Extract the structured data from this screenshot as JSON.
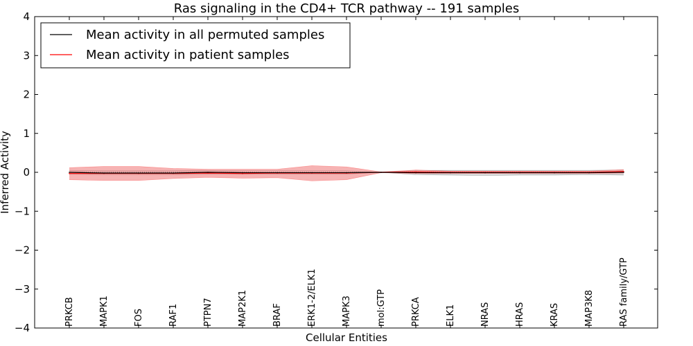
{
  "chart_data": {
    "type": "line",
    "title": "Ras signaling in the CD4+ TCR pathway -- 191 samples",
    "xlabel": "Cellular Entities",
    "ylabel": "Inferred Activity",
    "ylim": [
      -4,
      4
    ],
    "yticks": [
      4,
      3,
      2,
      1,
      0,
      -1,
      -2,
      -3,
      -4
    ],
    "ytick_labels": [
      "4",
      "3",
      "2",
      "1",
      "0",
      "−1",
      "−2",
      "−3",
      "−4"
    ],
    "categories": [
      "PRKCB",
      "MAPK1",
      "FOS",
      "RAF1",
      "PTPN7",
      "MAP2K1",
      "BRAF",
      "ERK1-2/ELK1",
      "MAPK3",
      "mol:GTP",
      "PRKCA",
      "ELK1",
      "NRAS",
      "HRAS",
      "KRAS",
      "MAP3K8",
      "RAS family/GTP"
    ],
    "legend_position": "top-left",
    "series": [
      {
        "name": "Mean activity in all permuted samples",
        "color": "#000000",
        "band_color": "#b0b0b0",
        "values": [
          0.0,
          -0.02,
          -0.02,
          -0.02,
          0.0,
          -0.01,
          -0.01,
          -0.01,
          -0.01,
          0.0,
          -0.01,
          -0.01,
          -0.01,
          -0.01,
          -0.01,
          -0.01,
          0.0
        ],
        "lower": [
          -0.05,
          -0.06,
          -0.06,
          -0.06,
          -0.05,
          -0.05,
          -0.05,
          -0.05,
          -0.05,
          0.0,
          -0.06,
          -0.07,
          -0.08,
          -0.07,
          -0.07,
          -0.06,
          -0.07
        ],
        "upper": [
          0.05,
          0.04,
          0.04,
          0.04,
          0.05,
          0.04,
          0.04,
          0.04,
          0.04,
          0.0,
          0.05,
          0.05,
          0.05,
          0.05,
          0.05,
          0.05,
          0.06
        ]
      },
      {
        "name": "Mean activity in patient samples",
        "color": "#ff0000",
        "band_color": "#f08080",
        "values": [
          -0.03,
          -0.03,
          -0.03,
          -0.03,
          -0.02,
          -0.03,
          -0.02,
          -0.02,
          -0.02,
          0.0,
          0.01,
          0.0,
          0.0,
          0.0,
          0.0,
          0.0,
          0.02
        ],
        "lower": [
          -0.19,
          -0.21,
          -0.21,
          -0.16,
          -0.13,
          -0.15,
          -0.14,
          -0.22,
          -0.19,
          -0.01,
          -0.03,
          -0.03,
          -0.03,
          -0.03,
          -0.03,
          -0.03,
          -0.02
        ],
        "upper": [
          0.12,
          0.15,
          0.15,
          0.1,
          0.08,
          0.08,
          0.08,
          0.17,
          0.14,
          0.01,
          0.06,
          0.03,
          0.03,
          0.03,
          0.03,
          0.03,
          0.07
        ]
      }
    ]
  }
}
